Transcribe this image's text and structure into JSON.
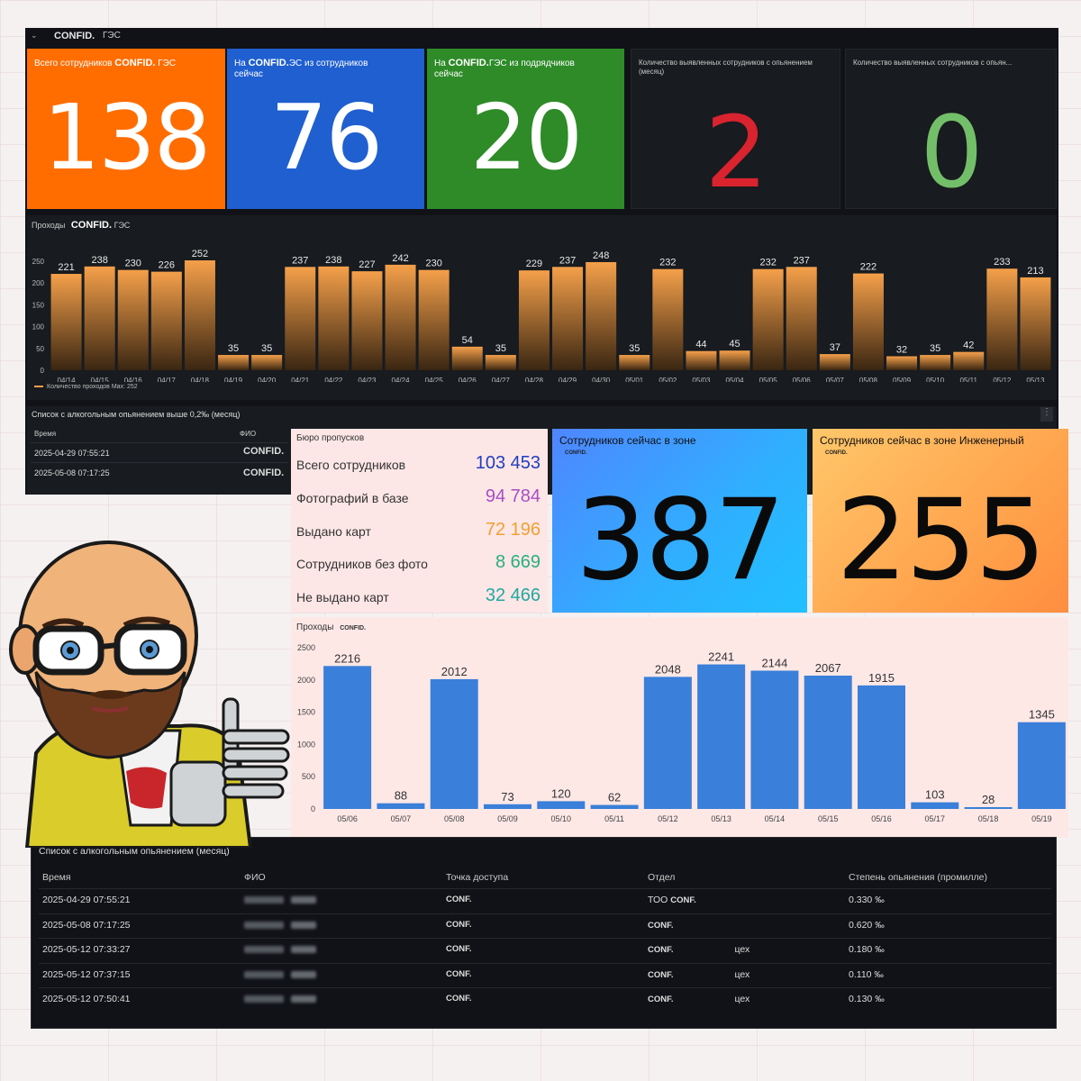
{
  "dash1": {
    "header": {
      "title": "CONFID.",
      "suffix": "ГЭС"
    },
    "stats": [
      {
        "label_pre": "Всего сотрудников",
        "label_bold": "CONFID.",
        "label_post": "ГЭС",
        "label2": "",
        "value": "138",
        "color": "#ff6d00"
      },
      {
        "label_pre": "На",
        "label_bold": "CONFID.",
        "label_post": "ЭС из сотрудников",
        "label2": "сейчас",
        "value": "76",
        "color": "#1f5fd0"
      },
      {
        "label_pre": "На",
        "label_bold": "CONFID.",
        "label_post": "ГЭС из подрядчиков",
        "label2": "сейчас",
        "value": "20",
        "color": "#2e8b28"
      },
      {
        "label_pre": "Количество выявленных сотрудников с опьянением",
        "label_bold": "",
        "label_post": "",
        "label2": "(месяц)",
        "value": "2",
        "color": "#d9232f"
      },
      {
        "label_pre": "Количество выявленных сотрудников с опьян...",
        "label_bold": "",
        "label_post": "",
        "label2": "",
        "value": "0",
        "color": "#73bf69"
      }
    ],
    "chart_title": {
      "pre": "Проходы",
      "bold": "CONFID.",
      "post": "ГЭС"
    },
    "chart_legend": "Количество проходов  Max: 252",
    "small_table": {
      "title": "Список с алкогольным опьянением выше 0,2‰ (месяц)",
      "headers": [
        "Время",
        "ФИО"
      ],
      "rows": [
        [
          "2025-04-29 07:55:21",
          "CONFID."
        ],
        [
          "2025-05-08 07:17:25",
          "CONFID."
        ]
      ],
      "menu_icon": "kebab-icon"
    }
  },
  "bureau": {
    "title": "Бюро пропусков",
    "rows": [
      {
        "label": "Всего сотрудников",
        "value": "103 453",
        "color": "#1f3fbf"
      },
      {
        "label": "Фотографий в базе",
        "value": "94 784",
        "color": "#a64fc4"
      },
      {
        "label": "Выдано карт",
        "value": "72 196",
        "color": "#f0a030"
      },
      {
        "label": "Сотрудников без фото",
        "value": "8 669",
        "color": "#27b07a"
      },
      {
        "label": "Не выдано карт",
        "value": "32 466",
        "color": "#20a8a0"
      }
    ]
  },
  "zones": [
    {
      "title": "Сотрудников сейчас в зоне",
      "sub": "CONFID.",
      "value": "387"
    },
    {
      "title": "Сотрудников сейчас в зоне Инженерный",
      "sub": "CONFID.",
      "value": "255"
    }
  ],
  "chart2_title": {
    "pre": "Проходы",
    "bold": "CONFID."
  },
  "alc_big": {
    "title": "Список с алкогольным опьянением (месяц)",
    "headers": [
      "Время",
      "ФИО",
      "Точка доступа",
      "Отдел",
      "Степень опьянения (промилле)"
    ],
    "rows": [
      {
        "time": "2025-04-29 07:55:21",
        "point": "CONF.",
        "dept_pre": "ТОО",
        "dept": "CONF.",
        "dept_post": "",
        "level": "0.330 ‰"
      },
      {
        "time": "2025-05-08 07:17:25",
        "point": "CONF.",
        "dept_pre": "",
        "dept": "CONF.",
        "dept_post": "",
        "level": "0.620 ‰"
      },
      {
        "time": "2025-05-12 07:33:27",
        "point": "CONF.",
        "dept_pre": "",
        "dept": "CONF.",
        "dept_post": "цех",
        "level": "0.180 ‰"
      },
      {
        "time": "2025-05-12 07:37:15",
        "point": "CONF.",
        "dept_pre": "",
        "dept": "CONF.",
        "dept_post": "цех",
        "level": "0.110 ‰"
      },
      {
        "time": "2025-05-12 07:50:41",
        "point": "CONF.",
        "dept_pre": "",
        "dept": "CONF.",
        "dept_post": "цех",
        "level": "0.130 ‰"
      }
    ]
  },
  "chart_data": [
    {
      "type": "bar",
      "categories": [
        "04/14",
        "04/15",
        "04/16",
        "04/17",
        "04/18",
        "04/19",
        "04/20",
        "04/21",
        "04/22",
        "04/23",
        "04/24",
        "04/25",
        "04/26",
        "04/27",
        "04/28",
        "04/29",
        "04/30",
        "05/01",
        "05/02",
        "05/03",
        "05/04",
        "05/05",
        "05/06",
        "05/07",
        "05/08",
        "05/09",
        "05/10",
        "05/11",
        "05/12",
        "05/13"
      ],
      "values": [
        221,
        238,
        230,
        226,
        252,
        35,
        35,
        237,
        238,
        227,
        242,
        230,
        54,
        35,
        229,
        237,
        248,
        35,
        232,
        44,
        45,
        232,
        237,
        37,
        222,
        32,
        35,
        42,
        233,
        213
      ],
      "title": "Проходы CONFID. ГЭС",
      "xlabel": "",
      "ylabel": "",
      "ylim": [
        0,
        250
      ],
      "yticks": [
        0,
        50,
        100,
        150,
        200,
        250
      ],
      "legend": "Количество проходов  Max: 252",
      "color": "#f5a04a"
    },
    {
      "type": "bar",
      "categories": [
        "05/06",
        "05/07",
        "05/08",
        "05/09",
        "05/10",
        "05/11",
        "05/12",
        "05/13",
        "05/14",
        "05/15",
        "05/16",
        "05/17",
        "05/18",
        "05/19"
      ],
      "values": [
        2216,
        88,
        2012,
        73,
        120,
        62,
        2048,
        2241,
        2144,
        2067,
        1915,
        103,
        28,
        1345
      ],
      "title": "Проходы CONFID.",
      "xlabel": "",
      "ylabel": "",
      "ylim": [
        0,
        2500
      ],
      "yticks": [
        0,
        500,
        1000,
        1500,
        2000,
        2500
      ],
      "color": "#3a7fd9"
    }
  ]
}
